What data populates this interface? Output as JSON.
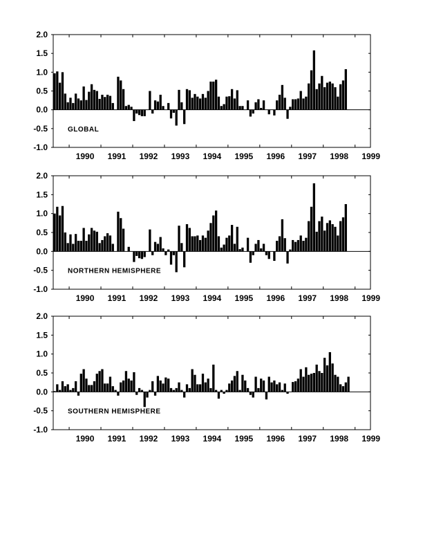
{
  "chart_data": [
    {
      "type": "bar",
      "label": "GLOBAL",
      "ylim": [
        -1.0,
        2.0
      ],
      "yticks": [
        "2.0",
        "1.5",
        "1.0",
        "0.5",
        "0.0",
        "-0.5",
        "-1.0"
      ],
      "xticks": [
        "1990",
        "1991",
        "1992",
        "1993",
        "1994",
        "1995",
        "1996",
        "1997",
        "1998",
        "1999"
      ],
      "start": "1989-07",
      "values": [
        0.97,
        1.02,
        0.72,
        1.0,
        0.43,
        0.2,
        0.32,
        0.18,
        0.43,
        0.3,
        0.25,
        0.62,
        0.26,
        0.48,
        0.68,
        0.53,
        0.5,
        0.29,
        0.4,
        0.34,
        0.4,
        0.37,
        0.18,
        0.0,
        0.88,
        0.78,
        0.55,
        0.1,
        0.13,
        0.08,
        -0.3,
        -0.1,
        -0.14,
        -0.17,
        -0.17,
        0.0,
        0.5,
        -0.1,
        0.25,
        0.22,
        0.4,
        0.1,
        0.0,
        0.18,
        -0.23,
        -0.08,
        -0.42,
        0.53,
        0.2,
        -0.38,
        0.55,
        0.52,
        0.32,
        0.42,
        0.35,
        0.3,
        0.42,
        0.32,
        0.5,
        0.75,
        0.75,
        0.8,
        0.35,
        0.1,
        0.15,
        0.35,
        0.36,
        0.55,
        0.3,
        0.52,
        0.1,
        0.1,
        0.0,
        0.25,
        -0.18,
        -0.1,
        0.2,
        0.28,
        0.05,
        0.25,
        0.0,
        -0.12,
        0.0,
        -0.15,
        0.25,
        0.4,
        0.66,
        0.32,
        -0.24,
        0.08,
        0.28,
        0.28,
        0.3,
        0.5,
        0.3,
        0.35,
        0.7,
        1.05,
        1.58,
        0.55,
        0.7,
        0.9,
        0.6,
        0.72,
        0.75,
        0.7,
        0.6,
        0.35,
        0.68,
        0.78,
        1.08
      ]
    },
    {
      "type": "bar",
      "label": "NORTHERN HEMISPHERE",
      "ylim": [
        -1.0,
        2.0
      ],
      "yticks": [
        "2.0",
        "1.5",
        "1.0",
        "0.5",
        "0.0",
        "-0.5",
        "-1.0"
      ],
      "xticks": [
        "1990",
        "1991",
        "1992",
        "1993",
        "1994",
        "1995",
        "1996",
        "1997",
        "1998",
        "1999"
      ],
      "start": "1989-07",
      "values": [
        1.0,
        1.18,
        0.95,
        1.2,
        0.5,
        0.22,
        0.45,
        0.2,
        0.46,
        0.28,
        0.28,
        0.62,
        0.28,
        0.45,
        0.62,
        0.55,
        0.52,
        0.22,
        0.3,
        0.4,
        0.48,
        0.42,
        0.2,
        0.0,
        1.05,
        0.88,
        0.6,
        0.0,
        0.12,
        0.0,
        -0.28,
        -0.12,
        -0.18,
        -0.2,
        -0.15,
        0.0,
        0.58,
        -0.1,
        0.25,
        0.2,
        0.38,
        0.08,
        -0.1,
        0.05,
        -0.35,
        -0.1,
        -0.55,
        0.68,
        0.22,
        -0.42,
        0.72,
        0.62,
        0.4,
        0.4,
        0.42,
        0.3,
        0.42,
        0.36,
        0.55,
        0.75,
        0.95,
        1.08,
        0.4,
        0.1,
        0.18,
        0.36,
        0.42,
        0.7,
        0.2,
        0.65,
        0.06,
        0.1,
        0.0,
        0.36,
        -0.3,
        -0.1,
        0.2,
        0.3,
        0.08,
        0.2,
        -0.1,
        -0.2,
        0.0,
        -0.25,
        0.28,
        0.4,
        0.85,
        0.35,
        -0.32,
        0.05,
        0.3,
        0.25,
        0.3,
        0.42,
        0.28,
        0.36,
        0.8,
        1.18,
        1.8,
        0.52,
        0.8,
        0.92,
        0.55,
        0.75,
        0.82,
        0.72,
        0.65,
        0.42,
        0.8,
        0.9,
        1.25
      ]
    },
    {
      "type": "bar",
      "label": "SOUTHERN HEMISPHERE",
      "ylim": [
        -1.0,
        2.0
      ],
      "yticks": [
        "2.0",
        "1.5",
        "1.0",
        "0.5",
        "0.0",
        "-0.5",
        "-1.0"
      ],
      "xticks": [
        "1990",
        "1991",
        "1992",
        "1993",
        "1994",
        "1995",
        "1996",
        "1997",
        "1998",
        "1999"
      ],
      "start": "1989-07",
      "values": [
        0.02,
        0.2,
        0.05,
        0.28,
        0.15,
        0.2,
        0.05,
        0.1,
        0.28,
        -0.1,
        0.48,
        0.6,
        0.35,
        0.18,
        0.18,
        0.28,
        0.48,
        0.55,
        0.6,
        0.22,
        0.22,
        0.4,
        0.15,
        0.05,
        -0.1,
        0.25,
        0.3,
        0.55,
        0.35,
        0.3,
        0.52,
        -0.08,
        0.1,
        0.05,
        -0.4,
        -0.15,
        0.05,
        0.28,
        -0.1,
        0.42,
        0.3,
        0.22,
        0.38,
        0.35,
        0.1,
        0.05,
        0.1,
        0.25,
        0.05,
        -0.15,
        0.2,
        0.1,
        0.6,
        0.45,
        0.2,
        0.2,
        0.48,
        0.25,
        0.35,
        0.1,
        0.72,
        0.05,
        -0.18,
        0.05,
        -0.05,
        0.05,
        0.22,
        0.3,
        0.42,
        0.55,
        0.05,
        0.45,
        0.3,
        0.1,
        -0.08,
        -0.15,
        0.4,
        0.1,
        0.35,
        0.3,
        -0.2,
        0.4,
        0.25,
        0.3,
        0.2,
        0.25,
        0.05,
        0.22,
        -0.05,
        0.0,
        0.26,
        0.28,
        0.35,
        0.6,
        0.4,
        0.65,
        0.45,
        0.48,
        0.5,
        0.72,
        0.55,
        0.5,
        0.9,
        0.7,
        1.05,
        0.75,
        0.45,
        0.4,
        0.2,
        0.15,
        0.25,
        0.4
      ]
    }
  ]
}
